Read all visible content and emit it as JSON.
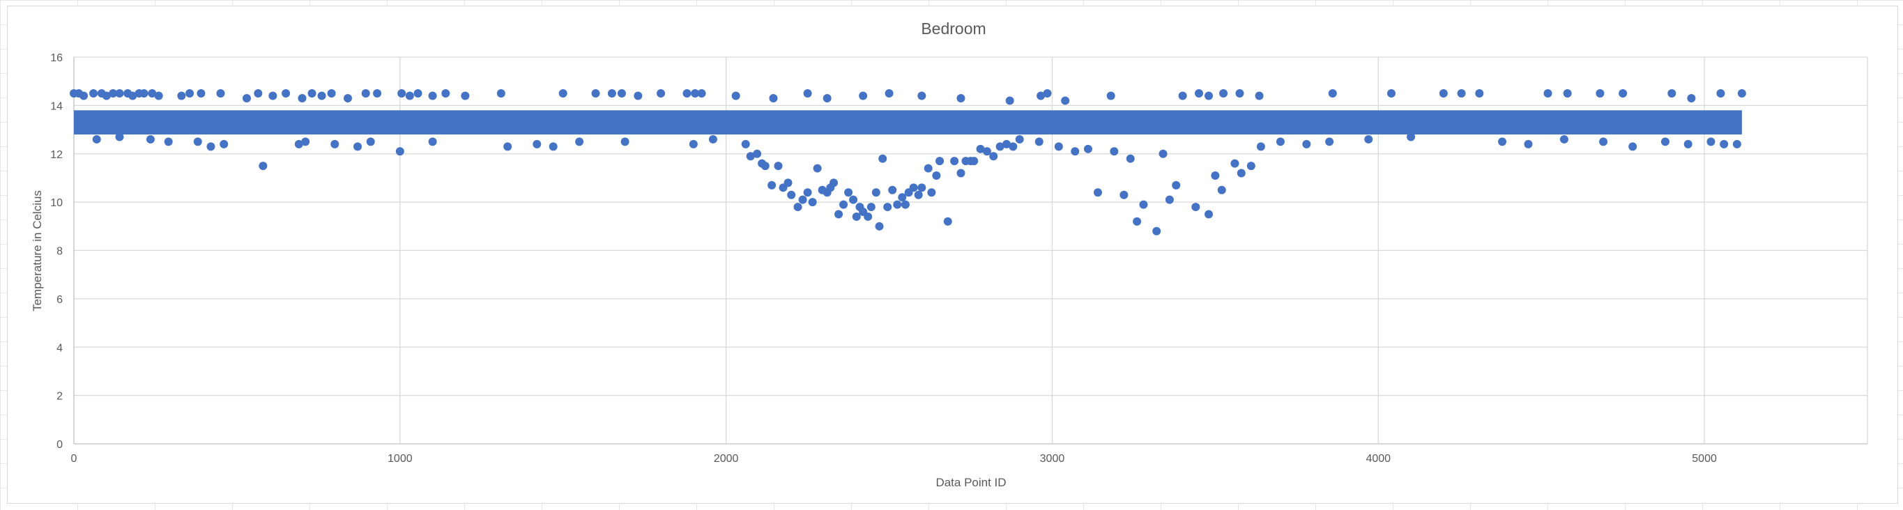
{
  "chart_data": {
    "type": "scatter",
    "title": "Bedroom",
    "xlabel": "Data Point ID",
    "ylabel": "Temperature in Celcius",
    "xlim": [
      0,
      5500
    ],
    "ylim": [
      0,
      16
    ],
    "xticks": [
      0,
      1000,
      2000,
      3000,
      4000,
      5000
    ],
    "yticks": [
      0,
      2,
      4,
      6,
      8,
      10,
      12,
      14,
      16
    ],
    "grid": true,
    "marker_color": "#4472C4",
    "band": {
      "x_range": [
        0,
        5115
      ],
      "y_range": [
        12.8,
        13.8
      ],
      "note": "dense band of points"
    },
    "series": [
      {
        "values": [
          [
            0,
            14.5
          ],
          [
            15,
            14.5
          ],
          [
            30,
            14.4
          ],
          [
            60,
            14.5
          ],
          [
            85,
            14.5
          ],
          [
            100,
            14.4
          ],
          [
            120,
            14.5
          ],
          [
            140,
            14.5
          ],
          [
            165,
            14.5
          ],
          [
            180,
            14.4
          ],
          [
            200,
            14.5
          ],
          [
            215,
            14.5
          ],
          [
            240,
            14.5
          ],
          [
            260,
            14.4
          ],
          [
            330,
            14.4
          ],
          [
            355,
            14.5
          ],
          [
            390,
            14.5
          ],
          [
            450,
            14.5
          ],
          [
            530,
            14.3
          ],
          [
            565,
            14.5
          ],
          [
            610,
            14.4
          ],
          [
            650,
            14.5
          ],
          [
            700,
            14.3
          ],
          [
            730,
            14.5
          ],
          [
            760,
            14.4
          ],
          [
            790,
            14.5
          ],
          [
            840,
            14.3
          ],
          [
            895,
            14.5
          ],
          [
            930,
            14.5
          ],
          [
            1005,
            14.5
          ],
          [
            1030,
            14.4
          ],
          [
            1055,
            14.5
          ],
          [
            1100,
            14.4
          ],
          [
            1140,
            14.5
          ],
          [
            1200,
            14.4
          ],
          [
            1310,
            14.5
          ],
          [
            1500,
            14.5
          ],
          [
            1600,
            14.5
          ],
          [
            1650,
            14.5
          ],
          [
            1680,
            14.5
          ],
          [
            1730,
            14.4
          ],
          [
            1800,
            14.5
          ],
          [
            1880,
            14.5
          ],
          [
            1905,
            14.5
          ],
          [
            1925,
            14.5
          ],
          [
            2030,
            14.4
          ],
          [
            2145,
            14.3
          ],
          [
            2250,
            14.5
          ],
          [
            2310,
            14.3
          ],
          [
            2420,
            14.4
          ],
          [
            2500,
            14.5
          ],
          [
            2600,
            14.4
          ],
          [
            2720,
            14.3
          ],
          [
            2870,
            14.2
          ],
          [
            2965,
            14.4
          ],
          [
            2985,
            14.5
          ],
          [
            3040,
            14.2
          ],
          [
            3180,
            14.4
          ],
          [
            3400,
            14.4
          ],
          [
            3450,
            14.5
          ],
          [
            3480,
            14.4
          ],
          [
            3525,
            14.5
          ],
          [
            3575,
            14.5
          ],
          [
            3635,
            14.4
          ],
          [
            3860,
            14.5
          ],
          [
            4040,
            14.5
          ],
          [
            4200,
            14.5
          ],
          [
            4255,
            14.5
          ],
          [
            4310,
            14.5
          ],
          [
            4520,
            14.5
          ],
          [
            4580,
            14.5
          ],
          [
            4680,
            14.5
          ],
          [
            4750,
            14.5
          ],
          [
            4900,
            14.5
          ],
          [
            4960,
            14.3
          ],
          [
            5050,
            14.5
          ],
          [
            5115,
            14.5
          ],
          [
            40,
            13.1
          ],
          [
            70,
            12.6
          ],
          [
            140,
            12.7
          ],
          [
            235,
            12.6
          ],
          [
            290,
            12.5
          ],
          [
            380,
            12.5
          ],
          [
            420,
            12.3
          ],
          [
            460,
            12.4
          ],
          [
            580,
            11.5
          ],
          [
            690,
            12.4
          ],
          [
            710,
            12.5
          ],
          [
            800,
            12.4
          ],
          [
            870,
            12.3
          ],
          [
            910,
            12.5
          ],
          [
            1000,
            12.1
          ],
          [
            1100,
            12.5
          ],
          [
            1330,
            12.3
          ],
          [
            1420,
            12.4
          ],
          [
            1470,
            12.3
          ],
          [
            1550,
            12.5
          ],
          [
            1690,
            12.5
          ],
          [
            1900,
            12.4
          ],
          [
            1960,
            12.6
          ],
          [
            2060,
            12.4
          ],
          [
            2075,
            11.9
          ],
          [
            2095,
            12.0
          ],
          [
            2110,
            11.6
          ],
          [
            2120,
            11.5
          ],
          [
            2140,
            10.7
          ],
          [
            2160,
            11.5
          ],
          [
            2175,
            10.6
          ],
          [
            2190,
            10.8
          ],
          [
            2200,
            10.3
          ],
          [
            2220,
            9.8
          ],
          [
            2235,
            10.1
          ],
          [
            2250,
            10.4
          ],
          [
            2265,
            10.0
          ],
          [
            2280,
            11.4
          ],
          [
            2295,
            10.5
          ],
          [
            2310,
            10.4
          ],
          [
            2320,
            10.6
          ],
          [
            2330,
            10.8
          ],
          [
            2345,
            9.5
          ],
          [
            2360,
            9.9
          ],
          [
            2375,
            10.4
          ],
          [
            2390,
            10.1
          ],
          [
            2400,
            9.4
          ],
          [
            2410,
            9.8
          ],
          [
            2420,
            9.6
          ],
          [
            2435,
            9.4
          ],
          [
            2445,
            9.8
          ],
          [
            2460,
            10.4
          ],
          [
            2470,
            9.0
          ],
          [
            2480,
            11.8
          ],
          [
            2495,
            9.8
          ],
          [
            2510,
            10.5
          ],
          [
            2525,
            9.9
          ],
          [
            2540,
            10.2
          ],
          [
            2550,
            9.9
          ],
          [
            2560,
            10.4
          ],
          [
            2575,
            10.6
          ],
          [
            2590,
            10.3
          ],
          [
            2600,
            10.6
          ],
          [
            2620,
            11.4
          ],
          [
            2630,
            10.4
          ],
          [
            2645,
            11.1
          ],
          [
            2655,
            11.7
          ],
          [
            2680,
            9.2
          ],
          [
            2700,
            11.7
          ],
          [
            2720,
            11.2
          ],
          [
            2735,
            11.7
          ],
          [
            2750,
            11.7
          ],
          [
            2760,
            11.7
          ],
          [
            2780,
            12.2
          ],
          [
            2800,
            12.1
          ],
          [
            2820,
            11.9
          ],
          [
            2840,
            12.3
          ],
          [
            2860,
            12.4
          ],
          [
            2880,
            12.3
          ],
          [
            2900,
            12.6
          ],
          [
            2960,
            12.5
          ],
          [
            3020,
            12.3
          ],
          [
            3070,
            12.1
          ],
          [
            3110,
            12.2
          ],
          [
            3140,
            10.4
          ],
          [
            3190,
            12.1
          ],
          [
            3220,
            10.3
          ],
          [
            3240,
            11.8
          ],
          [
            3260,
            9.2
          ],
          [
            3280,
            9.9
          ],
          [
            3320,
            8.8
          ],
          [
            3340,
            12.0
          ],
          [
            3360,
            10.1
          ],
          [
            3380,
            10.7
          ],
          [
            3440,
            9.8
          ],
          [
            3480,
            9.5
          ],
          [
            3500,
            11.1
          ],
          [
            3520,
            10.5
          ],
          [
            3560,
            11.6
          ],
          [
            3580,
            11.2
          ],
          [
            3610,
            11.5
          ],
          [
            3640,
            12.3
          ],
          [
            3700,
            12.5
          ],
          [
            3780,
            12.4
          ],
          [
            3850,
            12.5
          ],
          [
            3970,
            12.6
          ],
          [
            4100,
            12.7
          ],
          [
            4380,
            12.5
          ],
          [
            4460,
            12.4
          ],
          [
            4570,
            12.6
          ],
          [
            4690,
            12.5
          ],
          [
            4780,
            12.3
          ],
          [
            4880,
            12.5
          ],
          [
            4950,
            12.4
          ],
          [
            5020,
            12.5
          ],
          [
            5060,
            12.4
          ],
          [
            5100,
            12.4
          ]
        ]
      }
    ]
  }
}
